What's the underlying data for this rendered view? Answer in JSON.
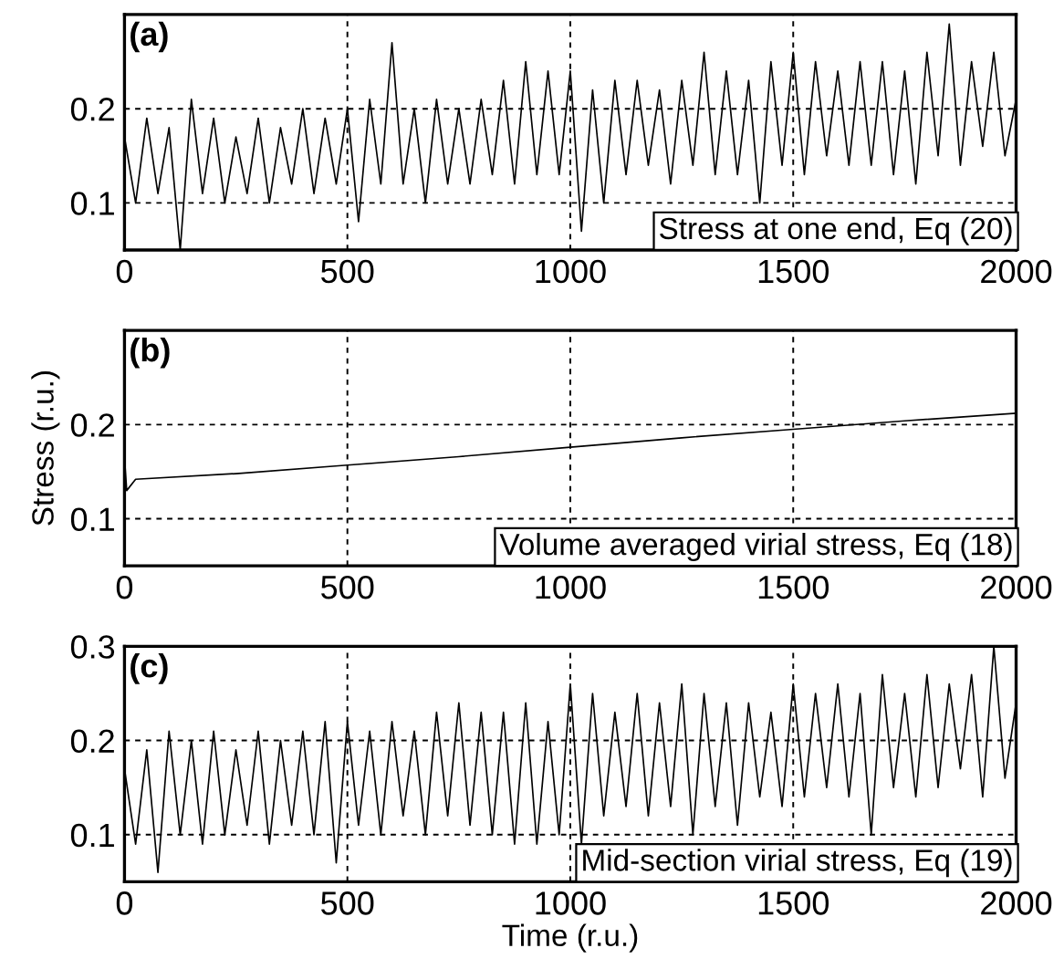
{
  "chart_data": [
    {
      "type": "line",
      "annotations": [
        "(a)",
        "Stress at one end, Eq (20)"
      ],
      "xlim": [
        0,
        2000
      ],
      "xticks": [
        0,
        500,
        1000,
        1500,
        2000
      ],
      "ylim": [
        0.05,
        0.3
      ],
      "yticks": [
        0.1,
        0.2
      ],
      "grid": true,
      "line_style": "solid",
      "x": [
        0,
        25,
        50,
        75,
        100,
        125,
        150,
        175,
        200,
        225,
        250,
        275,
        300,
        325,
        350,
        375,
        400,
        425,
        450,
        475,
        500,
        525,
        550,
        575,
        600,
        625,
        650,
        675,
        700,
        725,
        750,
        775,
        800,
        825,
        850,
        875,
        900,
        925,
        950,
        975,
        1000,
        1025,
        1050,
        1075,
        1100,
        1125,
        1150,
        1175,
        1200,
        1225,
        1250,
        1275,
        1300,
        1325,
        1350,
        1375,
        1400,
        1425,
        1450,
        1475,
        1500,
        1525,
        1550,
        1575,
        1600,
        1625,
        1650,
        1675,
        1700,
        1725,
        1750,
        1775,
        1800,
        1825,
        1850,
        1875,
        1900,
        1925,
        1950,
        1975,
        2000
      ],
      "series": [
        {
          "color": "#000000",
          "values": [
            0.17,
            0.1,
            0.19,
            0.11,
            0.18,
            0.05,
            0.21,
            0.11,
            0.19,
            0.1,
            0.17,
            0.11,
            0.19,
            0.1,
            0.18,
            0.12,
            0.2,
            0.11,
            0.19,
            0.12,
            0.2,
            0.08,
            0.21,
            0.12,
            0.27,
            0.12,
            0.2,
            0.1,
            0.21,
            0.12,
            0.2,
            0.12,
            0.21,
            0.13,
            0.23,
            0.12,
            0.25,
            0.13,
            0.24,
            0.13,
            0.24,
            0.07,
            0.22,
            0.1,
            0.23,
            0.13,
            0.23,
            0.14,
            0.22,
            0.12,
            0.23,
            0.14,
            0.26,
            0.13,
            0.24,
            0.13,
            0.23,
            0.1,
            0.25,
            0.14,
            0.26,
            0.13,
            0.25,
            0.15,
            0.24,
            0.14,
            0.25,
            0.14,
            0.25,
            0.13,
            0.24,
            0.12,
            0.26,
            0.15,
            0.29,
            0.14,
            0.25,
            0.16,
            0.26,
            0.15,
            0.21
          ]
        }
      ]
    },
    {
      "type": "line",
      "ylabel": "Stress (r.u.)",
      "annotations": [
        "(b)",
        "Volume averaged virial stress, Eq (18)"
      ],
      "xlim": [
        0,
        2000
      ],
      "xticks": [
        0,
        500,
        1000,
        1500,
        2000
      ],
      "ylim": [
        0.05,
        0.3
      ],
      "yticks": [
        0.1,
        0.2
      ],
      "grid": true,
      "line_style": "solid",
      "x": [
        0,
        5,
        25,
        250,
        500,
        750,
        1000,
        1250,
        1500,
        1750,
        2000
      ],
      "series": [
        {
          "color": "#000000",
          "values": [
            0.165,
            0.13,
            0.142,
            0.148,
            0.157,
            0.166,
            0.176,
            0.186,
            0.195,
            0.204,
            0.212
          ]
        }
      ]
    },
    {
      "type": "line",
      "xlabel": "Time (r.u.)",
      "annotations": [
        "(c)",
        "Mid-section virial stress, Eq (19)"
      ],
      "xlim": [
        0,
        2000
      ],
      "xticks": [
        0,
        500,
        1000,
        1500,
        2000
      ],
      "ylim": [
        0.05,
        0.3
      ],
      "yticks": [
        0.1,
        0.2,
        0.3
      ],
      "grid": true,
      "line_style": "solid",
      "x": [
        0,
        25,
        50,
        75,
        100,
        125,
        150,
        175,
        200,
        225,
        250,
        275,
        300,
        325,
        350,
        375,
        400,
        425,
        450,
        475,
        500,
        525,
        550,
        575,
        600,
        625,
        650,
        675,
        700,
        725,
        750,
        775,
        800,
        825,
        850,
        875,
        900,
        925,
        950,
        975,
        1000,
        1025,
        1050,
        1075,
        1100,
        1125,
        1150,
        1175,
        1200,
        1225,
        1250,
        1275,
        1300,
        1325,
        1350,
        1375,
        1400,
        1425,
        1450,
        1475,
        1500,
        1525,
        1550,
        1575,
        1600,
        1625,
        1650,
        1675,
        1700,
        1725,
        1750,
        1775,
        1800,
        1825,
        1850,
        1875,
        1900,
        1925,
        1950,
        1975,
        2000
      ],
      "series": [
        {
          "color": "#000000",
          "values": [
            0.17,
            0.09,
            0.19,
            0.06,
            0.21,
            0.1,
            0.2,
            0.09,
            0.21,
            0.1,
            0.19,
            0.11,
            0.21,
            0.09,
            0.2,
            0.11,
            0.21,
            0.1,
            0.22,
            0.07,
            0.22,
            0.11,
            0.21,
            0.1,
            0.22,
            0.12,
            0.21,
            0.1,
            0.23,
            0.12,
            0.24,
            0.11,
            0.23,
            0.1,
            0.23,
            0.09,
            0.24,
            0.09,
            0.22,
            0.1,
            0.26,
            0.09,
            0.25,
            0.12,
            0.23,
            0.13,
            0.25,
            0.12,
            0.24,
            0.13,
            0.26,
            0.1,
            0.25,
            0.13,
            0.24,
            0.11,
            0.24,
            0.14,
            0.23,
            0.13,
            0.26,
            0.14,
            0.25,
            0.15,
            0.26,
            0.14,
            0.25,
            0.1,
            0.27,
            0.15,
            0.25,
            0.14,
            0.27,
            0.15,
            0.26,
            0.17,
            0.27,
            0.14,
            0.3,
            0.16,
            0.24
          ]
        }
      ]
    }
  ]
}
